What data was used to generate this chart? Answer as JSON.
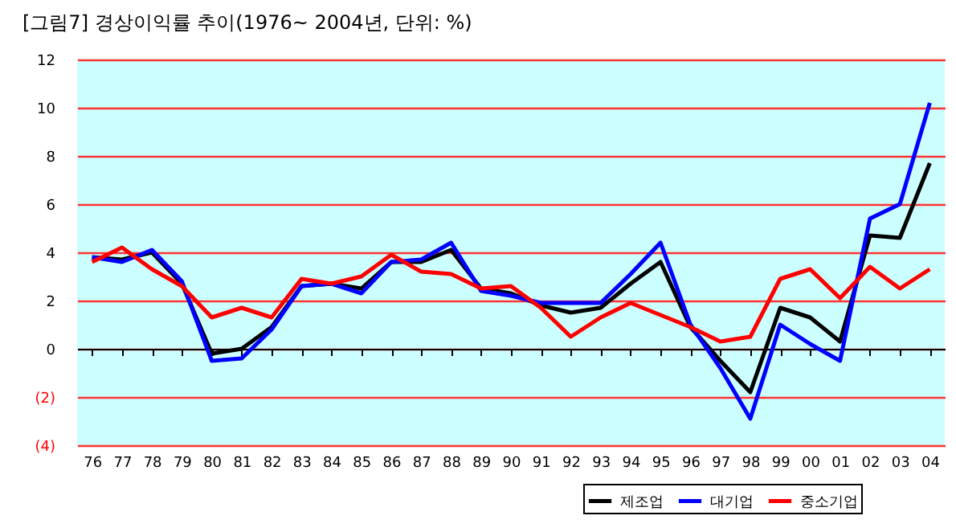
{
  "chart_data": {
    "type": "line",
    "title": "[그림7] 경상이익률 추이(1976~ 2004년, 단위: %)",
    "categories": [
      "76",
      "77",
      "78",
      "79",
      "80",
      "81",
      "82",
      "83",
      "84",
      "85",
      "86",
      "87",
      "88",
      "89",
      "90",
      "91",
      "92",
      "93",
      "94",
      "95",
      "96",
      "97",
      "98",
      "99",
      "00",
      "01",
      "02",
      "03",
      "04"
    ],
    "series": [
      {
        "name": "제조업",
        "color": "#000000",
        "values": [
          3.8,
          3.7,
          4.0,
          2.7,
          -0.2,
          0.0,
          0.9,
          2.6,
          2.7,
          2.5,
          3.6,
          3.6,
          4.1,
          2.5,
          2.3,
          1.8,
          1.5,
          1.7,
          2.7,
          3.6,
          0.9,
          -0.5,
          -1.8,
          1.7,
          1.3,
          0.3,
          4.7,
          4.6,
          7.7
        ]
      },
      {
        "name": "대기업",
        "color": "#0000ff",
        "values": [
          3.8,
          3.6,
          4.1,
          2.8,
          -0.5,
          -0.4,
          0.8,
          2.6,
          2.7,
          2.3,
          3.6,
          3.7,
          4.4,
          2.4,
          2.2,
          1.9,
          1.9,
          1.9,
          3.1,
          4.4,
          1.0,
          -0.8,
          -2.9,
          1.0,
          0.2,
          -0.5,
          5.4,
          6.0,
          10.2
        ]
      },
      {
        "name": "중소기업",
        "color": "#ff0000",
        "values": [
          3.6,
          4.2,
          3.3,
          2.6,
          1.3,
          1.7,
          1.3,
          2.9,
          2.7,
          3.0,
          3.9,
          3.2,
          3.1,
          2.5,
          2.6,
          1.7,
          0.5,
          1.3,
          1.9,
          1.4,
          0.9,
          0.3,
          0.5,
          2.9,
          3.3,
          2.1,
          3.4,
          2.5,
          3.3
        ]
      }
    ],
    "ylim": [
      -4,
      12
    ],
    "yticks": [
      {
        "value": -4,
        "label": "(4)"
      },
      {
        "value": -2,
        "label": "(2)"
      },
      0,
      2,
      4,
      6,
      8,
      10,
      12
    ],
    "grid": "y",
    "legend": "bottom right",
    "marker": "none",
    "line_style": "solid"
  }
}
